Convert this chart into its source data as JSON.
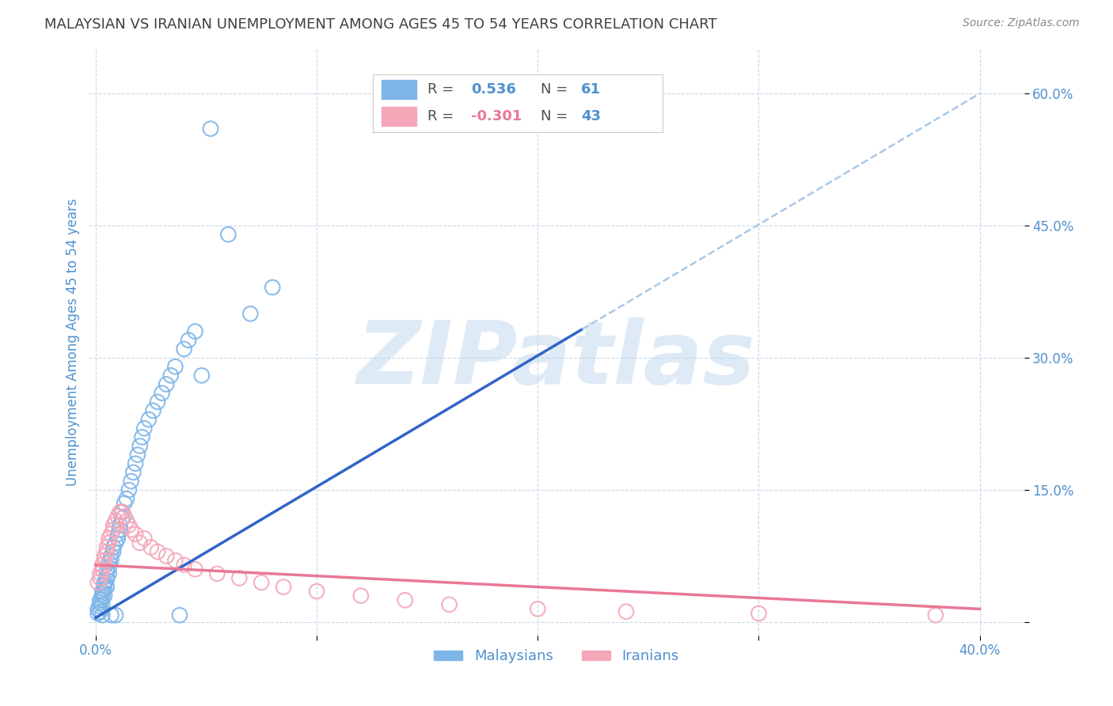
{
  "title": "MALAYSIAN VS IRANIAN UNEMPLOYMENT AMONG AGES 45 TO 54 YEARS CORRELATION CHART",
  "source": "Source: ZipAtlas.com",
  "ylabel": "Unemployment Among Ages 45 to 54 years",
  "x_tick_vals": [
    0.0,
    0.1,
    0.2,
    0.3,
    0.4
  ],
  "x_tick_labels": [
    "0.0%",
    "",
    "",
    "",
    "40.0%"
  ],
  "y_ticks_right": [
    0.0,
    0.15,
    0.3,
    0.45,
    0.6
  ],
  "y_tick_labels_right": [
    "",
    "15.0%",
    "30.0%",
    "45.0%",
    "60.0%"
  ],
  "xlim": [
    -0.003,
    0.42
  ],
  "ylim": [
    -0.015,
    0.65
  ],
  "malaysian_color": "#7EB6E8",
  "iranian_color": "#F4A7B9",
  "trend_malaysian_color": "#3264C8",
  "trend_iranian_color": "#E87896",
  "dashed_line_color": "#A8C8E8",
  "R_malaysian": 0.536,
  "N_malaysian": 61,
  "R_iranian": -0.301,
  "N_iranian": 43,
  "legend_labels": [
    "Malaysians",
    "Iranians"
  ],
  "background_color": "#FFFFFF",
  "grid_color": "#C8D8E8",
  "title_color": "#404040",
  "axis_color": "#5090D0",
  "watermark_text": "ZIPatlas",
  "watermark_color": "#C8DCF0",
  "malaysian_x": [
    0.001,
    0.001,
    0.002,
    0.002,
    0.002,
    0.002,
    0.003,
    0.003,
    0.003,
    0.003,
    0.003,
    0.004,
    0.004,
    0.004,
    0.004,
    0.005,
    0.005,
    0.005,
    0.005,
    0.006,
    0.006,
    0.006,
    0.007,
    0.007,
    0.007,
    0.008,
    0.008,
    0.009,
    0.009,
    0.01,
    0.01,
    0.011,
    0.011,
    0.012,
    0.012,
    0.013,
    0.014,
    0.015,
    0.016,
    0.017,
    0.018,
    0.019,
    0.02,
    0.021,
    0.022,
    0.024,
    0.026,
    0.028,
    0.03,
    0.032,
    0.034,
    0.036,
    0.038,
    0.04,
    0.042,
    0.045,
    0.048,
    0.052,
    0.06,
    0.07,
    0.08
  ],
  "malaysian_y": [
    0.01,
    0.015,
    0.012,
    0.018,
    0.022,
    0.025,
    0.02,
    0.028,
    0.032,
    0.035,
    0.008,
    0.03,
    0.038,
    0.042,
    0.045,
    0.04,
    0.048,
    0.052,
    0.058,
    0.055,
    0.062,
    0.068,
    0.07,
    0.075,
    0.008,
    0.08,
    0.085,
    0.09,
    0.008,
    0.095,
    0.1,
    0.105,
    0.11,
    0.118,
    0.125,
    0.135,
    0.14,
    0.15,
    0.16,
    0.17,
    0.18,
    0.19,
    0.2,
    0.21,
    0.22,
    0.23,
    0.24,
    0.25,
    0.26,
    0.27,
    0.28,
    0.29,
    0.008,
    0.31,
    0.32,
    0.33,
    0.28,
    0.56,
    0.44,
    0.35,
    0.38
  ],
  "iranian_x": [
    0.001,
    0.002,
    0.002,
    0.003,
    0.003,
    0.004,
    0.004,
    0.005,
    0.005,
    0.006,
    0.006,
    0.007,
    0.008,
    0.008,
    0.009,
    0.01,
    0.011,
    0.012,
    0.013,
    0.014,
    0.015,
    0.016,
    0.018,
    0.02,
    0.022,
    0.025,
    0.028,
    0.032,
    0.036,
    0.04,
    0.045,
    0.055,
    0.065,
    0.075,
    0.085,
    0.1,
    0.12,
    0.14,
    0.16,
    0.2,
    0.24,
    0.3,
    0.38
  ],
  "iranian_y": [
    0.045,
    0.05,
    0.055,
    0.06,
    0.065,
    0.07,
    0.075,
    0.08,
    0.085,
    0.09,
    0.095,
    0.1,
    0.105,
    0.11,
    0.115,
    0.12,
    0.125,
    0.125,
    0.12,
    0.115,
    0.11,
    0.105,
    0.1,
    0.09,
    0.095,
    0.085,
    0.08,
    0.075,
    0.07,
    0.065,
    0.06,
    0.055,
    0.05,
    0.045,
    0.04,
    0.035,
    0.03,
    0.025,
    0.02,
    0.015,
    0.012,
    0.01,
    0.008
  ],
  "trend_m_x0": 0.0,
  "trend_m_x1": 0.4,
  "trend_m_y0": 0.005,
  "trend_m_y1": 0.6,
  "trend_m_solid_x1": 0.22,
  "trend_i_x0": 0.0,
  "trend_i_x1": 0.4,
  "trend_i_y0": 0.065,
  "trend_i_y1": 0.015
}
